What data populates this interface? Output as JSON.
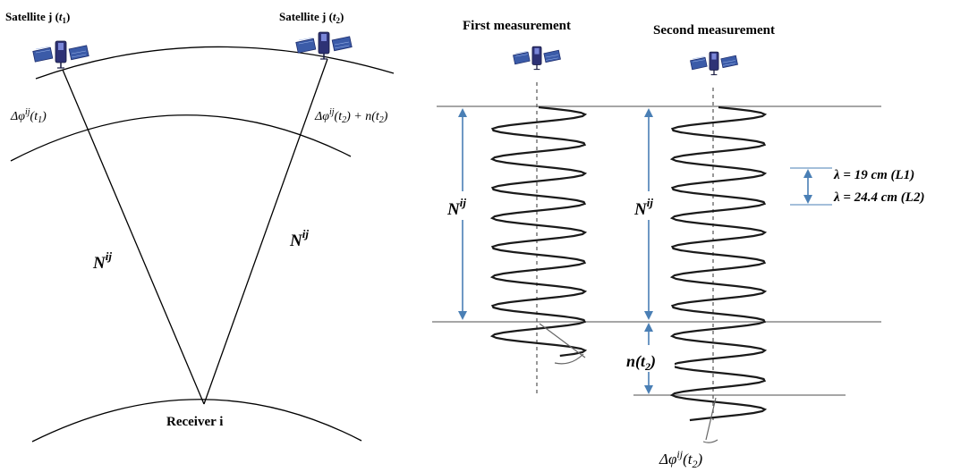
{
  "left": {
    "satellite_t1_label": "Satellite j (",
    "satellite_t1_var": "t",
    "satellite_t1_sub": "1",
    "satellite_t1_close": ")",
    "satellite_t2_label": "Satellite j (",
    "satellite_t2_var": "t",
    "satellite_t2_sub": "2",
    "satellite_t2_close": ")",
    "phase_t1": {
      "delta": "Δφ",
      "sup": "ij",
      "arg": "(t",
      "sub": "1",
      "close": ")"
    },
    "phase_t2": {
      "delta": "Δφ",
      "sup": "ij",
      "arg": "(t",
      "sub": "2",
      "close": ")",
      "plus": " + n(t",
      "sub2": "2",
      "close2": ")"
    },
    "ambiguity_left": {
      "base": "N",
      "sup": "ij"
    },
    "ambiguity_right": {
      "base": "N",
      "sup": "ij"
    },
    "receiver_label": "Receiver i"
  },
  "right": {
    "first_title": "First measurement",
    "second_title": "Second measurement",
    "ambiguity_first": {
      "base": "N",
      "sup": "ij"
    },
    "ambiguity_second": {
      "base": "N",
      "sup": "ij"
    },
    "wavelength_l1": "λ = 19 cm (L1)",
    "wavelength_l2": "λ = 24.4 cm (L2)",
    "n_t2": {
      "base": "n(t",
      "sub": "2",
      "close": ")"
    },
    "phase_bottom": {
      "delta": "Δφ",
      "sup": "ij",
      "arg": "(t",
      "sub": "2",
      "close": ")"
    }
  },
  "colors": {
    "arrow": "#4a7fb5",
    "line": "#000000",
    "grey_line": "#9a9a9a",
    "satellite_body": "#3a3f8f"
  },
  "icons": [
    "satellite-icon"
  ]
}
